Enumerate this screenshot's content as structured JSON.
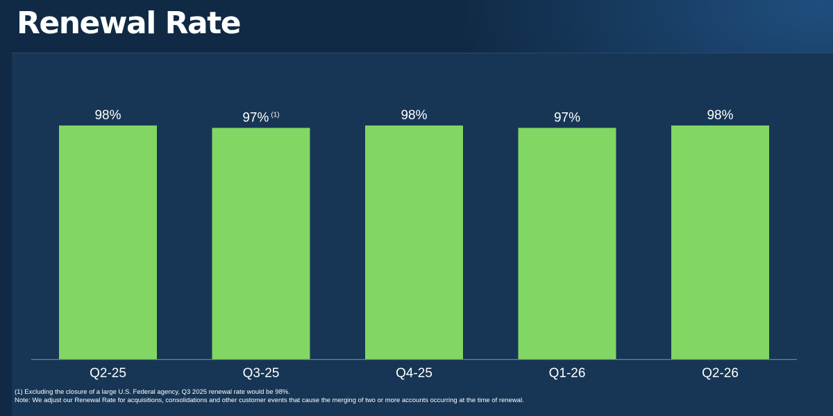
{
  "page": {
    "title": "Renewal Rate",
    "footnotes": [
      "(1) Excluding the closure of a large U.S. Federal agency, Q3 2025 renewal rate would be 98%.",
      "Note: We adjust our Renewal Rate for acquisitions, consolidations and other customer events that cause the merging of two or more accounts occurring at the time of renewal."
    ]
  },
  "colors": {
    "bar": "#82d663",
    "panel": "#173655",
    "text": "#ffffff",
    "axis": "#6d8296"
  },
  "chart_data": {
    "type": "bar",
    "categories": [
      "Q2-25",
      "Q3-25",
      "Q4-25",
      "Q1-26",
      "Q2-26"
    ],
    "values": [
      98,
      97,
      98,
      97,
      98
    ],
    "data_labels": [
      "98%",
      "97%",
      "98%",
      "97%",
      "98%"
    ],
    "label_superscripts": [
      "",
      "(1)",
      "",
      "",
      ""
    ],
    "title": "Renewal Rate",
    "xlabel": "",
    "ylabel": "",
    "grid": false,
    "legend": "none"
  }
}
